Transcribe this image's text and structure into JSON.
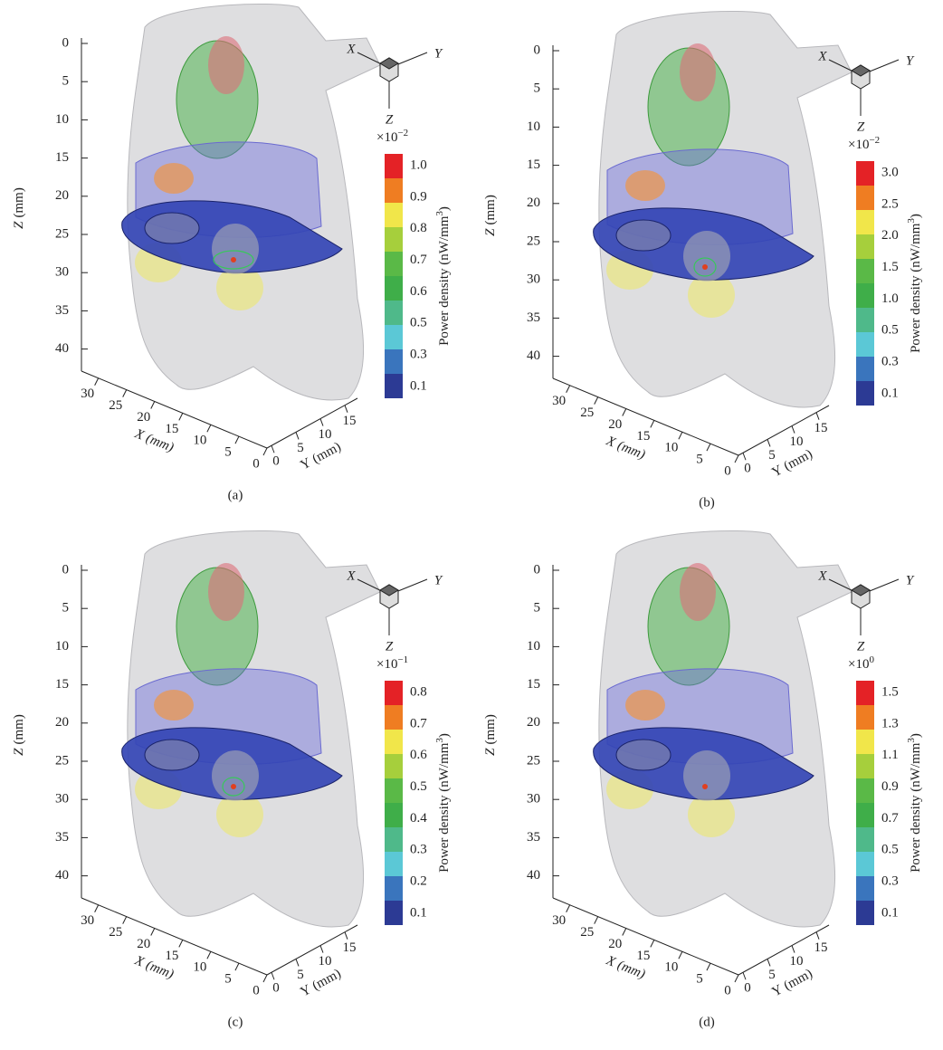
{
  "panels": [
    {
      "label": "(a)",
      "triad": {
        "x": "X",
        "y": "Y",
        "z": "Z"
      },
      "z_axis": {
        "letter": "Z",
        "unit": "(mm)",
        "ticks": [
          "0",
          "5",
          "10",
          "15",
          "20",
          "25",
          "30",
          "35",
          "40"
        ]
      },
      "x_axis": {
        "letter": "X",
        "unit": "(mm)",
        "ticks": [
          "30",
          "25",
          "20",
          "15",
          "10",
          "5",
          "0"
        ]
      },
      "y_axis": {
        "letter": "Y",
        "unit": "(mm)",
        "ticks": [
          "0",
          "5",
          "10",
          "15"
        ]
      },
      "colorbar": {
        "scale_base": "×10",
        "scale_exponent": "−2",
        "ticks": [
          "1.0",
          "0.9",
          "0.8",
          "0.7",
          "0.6",
          "0.5",
          "0.3",
          "0.1"
        ],
        "label": "Power density (nW/mm",
        "label_superscript": "3",
        "label_end": ")"
      }
    },
    {
      "label": "(b)",
      "triad": {
        "x": "X",
        "y": "Y",
        "z": "Z"
      },
      "z_axis": {
        "letter": "Z",
        "unit": "(mm)",
        "ticks": [
          "0",
          "5",
          "10",
          "15",
          "20",
          "25",
          "30",
          "35",
          "40"
        ]
      },
      "x_axis": {
        "letter": "X",
        "unit": "(mm)",
        "ticks": [
          "30",
          "25",
          "20",
          "15",
          "10",
          "5",
          "0"
        ]
      },
      "y_axis": {
        "letter": "Y",
        "unit": "(mm)",
        "ticks": [
          "0",
          "5",
          "10",
          "15"
        ]
      },
      "colorbar": {
        "scale_base": "×10",
        "scale_exponent": "−2",
        "ticks": [
          "3.0",
          "2.5",
          "2.0",
          "1.5",
          "1.0",
          "0.5",
          "0.3",
          "0.1"
        ],
        "label": "Power density (nW/mm",
        "label_superscript": "3",
        "label_end": ")"
      }
    },
    {
      "label": "(c)",
      "triad": {
        "x": "X",
        "y": "Y",
        "z": "Z"
      },
      "z_axis": {
        "letter": "Z",
        "unit": "(mm)",
        "ticks": [
          "0",
          "5",
          "10",
          "15",
          "20",
          "25",
          "30",
          "35",
          "40"
        ]
      },
      "x_axis": {
        "letter": "X",
        "unit": "(mm)",
        "ticks": [
          "30",
          "25",
          "20",
          "15",
          "10",
          "5",
          "0"
        ]
      },
      "y_axis": {
        "letter": "Y",
        "unit": "(mm)",
        "ticks": [
          "0",
          "5",
          "10",
          "15"
        ]
      },
      "colorbar": {
        "scale_base": "×10",
        "scale_exponent": "−1",
        "ticks": [
          "0.8",
          "0.7",
          "0.6",
          "0.5",
          "0.4",
          "0.3",
          "0.2",
          "0.1"
        ],
        "label": "Power density (nW/mm",
        "label_superscript": "3",
        "label_end": ")"
      }
    },
    {
      "label": "(d)",
      "triad": {
        "x": "X",
        "y": "Y",
        "z": "Z"
      },
      "z_axis": {
        "letter": "Z",
        "unit": "(mm)",
        "ticks": [
          "0",
          "5",
          "10",
          "15",
          "20",
          "25",
          "30",
          "35",
          "40"
        ]
      },
      "x_axis": {
        "letter": "X",
        "unit": "(mm)",
        "ticks": [
          "30",
          "25",
          "20",
          "15",
          "10",
          "5",
          "0"
        ]
      },
      "y_axis": {
        "letter": "Y",
        "unit": "(mm)",
        "ticks": [
          "0",
          "5",
          "10",
          "15"
        ]
      },
      "colorbar": {
        "scale_base": "×10",
        "scale_exponent": "0",
        "ticks": [
          "1.5",
          "1.3",
          "1.1",
          "0.9",
          "0.7",
          "0.5",
          "0.3",
          "0.1"
        ],
        "label": "Power density (nW/mm",
        "label_superscript": "3",
        "label_end": ")"
      }
    }
  ]
}
